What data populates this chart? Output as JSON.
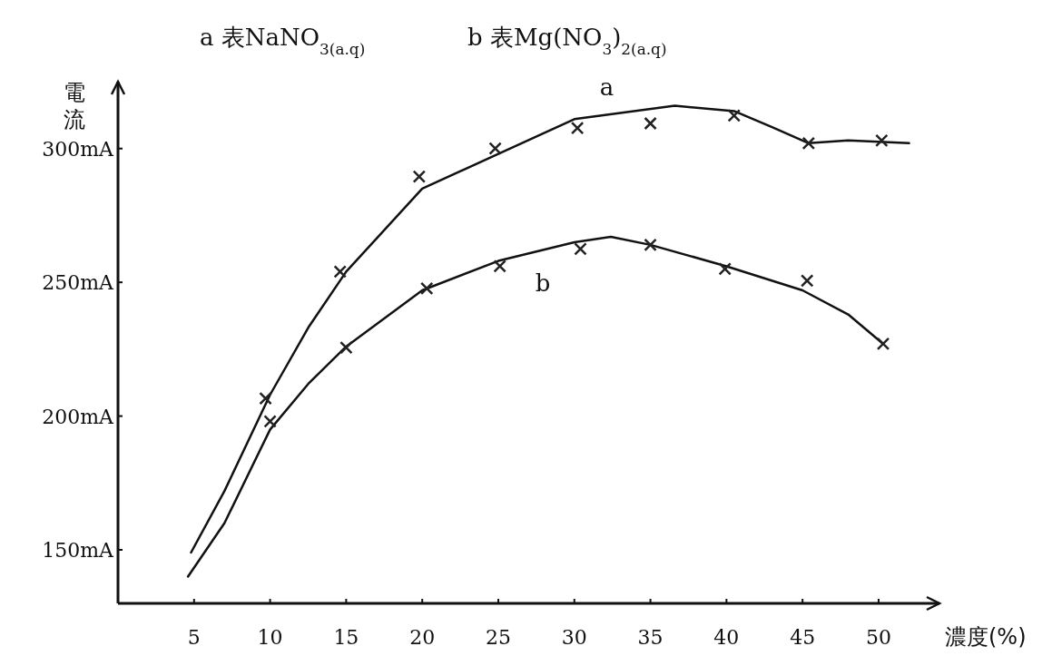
{
  "chart_data": {
    "type": "line",
    "title": "a 表NaNO$_{3(a.q)}$",
    "subtitle": "b 表Mg(NO$_{3}$)$_{2(a.q)}$",
    "xlabel": "濃度(%)",
    "ylabel": "電流",
    "xlim": [
      0,
      54
    ],
    "ylim": [
      130,
      325
    ],
    "xticks": [
      5,
      10,
      15,
      20,
      25,
      30,
      35,
      40,
      45,
      50
    ],
    "yticks": [
      {
        "value": 150,
        "label": "150mA"
      },
      {
        "value": 200,
        "label": "200mA"
      },
      {
        "value": 250,
        "label": "250mA"
      },
      {
        "value": 300,
        "label": "300mA"
      }
    ],
    "grid": false,
    "series": [
      {
        "name": "a",
        "color": "#111111",
        "marker": "none",
        "line_style": "solid",
        "x": [
          4.8,
          7,
          10,
          12.5,
          15,
          20,
          25,
          30,
          36.6,
          40.5,
          43,
          45.4,
          48,
          52
        ],
        "values": [
          149,
          172,
          208,
          233,
          254,
          285,
          298,
          311,
          316,
          314,
          308,
          302,
          303,
          302
        ]
      },
      {
        "name": "b",
        "color": "#111111",
        "marker": "none",
        "line_style": "solid",
        "x": [
          4.6,
          7,
          10,
          12.5,
          15,
          20,
          25,
          30,
          32.4,
          35,
          40,
          45,
          48,
          50.3
        ],
        "values": [
          140,
          160,
          195,
          212,
          226,
          247,
          258,
          265,
          267,
          264,
          256,
          247,
          238,
          227
        ]
      },
      {
        "type": "scatter",
        "color": "#222222",
        "marker": "cross",
        "x": [
          9.7,
          14.6,
          19.8,
          24.8,
          30.2,
          35,
          40.5,
          45.4,
          50.2
        ],
        "values": [
          206.6,
          254,
          289.5,
          300,
          307.7,
          309.4,
          312.3,
          302,
          303
        ]
      },
      {
        "type": "scatter",
        "color": "#222222",
        "marker": "cross",
        "x": [
          10,
          15,
          20.3,
          25.1,
          30.4,
          35,
          39.9,
          45.3,
          50.3
        ],
        "values": [
          198,
          225.6,
          247.7,
          256,
          262.5,
          264,
          255,
          250.6,
          227
        ]
      }
    ]
  }
}
